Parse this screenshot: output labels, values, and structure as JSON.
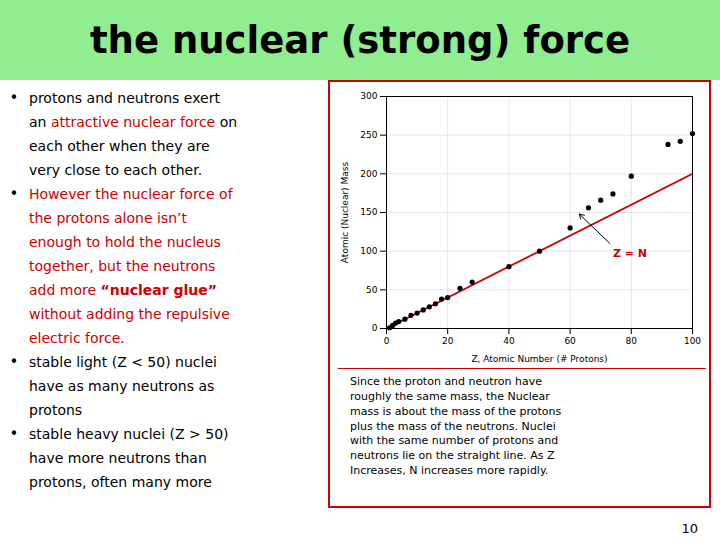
{
  "chart_data": {
    "type": "scatter",
    "title": "the nuclear (strong) force",
    "title_background": "#90EE90",
    "x": [
      1,
      2,
      3,
      4,
      6,
      8,
      10,
      12,
      14,
      16,
      18,
      20,
      24,
      28,
      40,
      50,
      60,
      66,
      70,
      74,
      80,
      92,
      96,
      100
    ],
    "values": [
      1,
      4,
      7,
      9,
      12,
      17,
      20,
      24,
      28,
      32,
      38,
      40,
      52,
      60,
      80,
      100,
      130,
      156,
      166,
      174,
      197,
      238,
      242,
      252
    ],
    "color": "#000000",
    "reference_line": {
      "type": "line",
      "x": [
        0,
        100
      ],
      "values": [
        0,
        200
      ],
      "color": "#CC0000"
    },
    "xlabel": "Z, Atomic Number (# Protons)",
    "ylabel": "Atomic (Nuclear) Mass",
    "xlim": [
      0,
      100
    ],
    "ylim": [
      0,
      300
    ],
    "xticks": [
      0,
      20,
      40,
      60,
      80,
      100
    ],
    "yticks": [
      0,
      50,
      100,
      150,
      200,
      250,
      300
    ],
    "grid": true,
    "annotations": [
      {
        "text": "Z = N",
        "x": 74,
        "y": 92,
        "color": "#CC0000",
        "arrow": {
          "x1": 73,
          "y1": 110,
          "x2": 63,
          "y2": 148
        }
      }
    ],
    "border_color": "#CC0000",
    "caption": "Since the proton and neutron have\nroughly the same mass, the Nuclear\nmass is about the mass of the protons\nplus the mass of the neutrons. Nuclei\nwith the same number of protons and\nneutrons lie on the straight line. As Z\nIncreases, N increases more rapidly.",
    "notes": [
      {
        "bullet": "•",
        "segments": [
          {
            "text": "protons and neutrons exert",
            "color": "#000000"
          }
        ]
      },
      {
        "segments": [
          {
            "text": "an ",
            "color": "#000000"
          },
          {
            "text": "attractive nuclear force",
            "color": "#CC0000"
          },
          {
            "text": " on",
            "color": "#000000"
          }
        ]
      },
      {
        "segments": [
          {
            "text": "each other when they are",
            "color": "#000000"
          }
        ]
      },
      {
        "segments": [
          {
            "text": "very close to each other.",
            "color": "#000000"
          }
        ]
      },
      {
        "bullet": "•",
        "segments": [
          {
            "text": "However the nuclear force of",
            "color": "#CC0000"
          }
        ]
      },
      {
        "segments": [
          {
            "text": "the protons alone isn’t",
            "color": "#CC0000"
          }
        ]
      },
      {
        "segments": [
          {
            "text": "enough to hold the nucleus",
            "color": "#CC0000"
          }
        ]
      },
      {
        "segments": [
          {
            "text": "together, but the neutrons",
            "color": "#CC0000"
          }
        ]
      },
      {
        "segments": [
          {
            "text": "add more ",
            "color": "#CC0000"
          },
          {
            "text": "“nuclear glue”",
            "color": "#CC0000",
            "bold": true
          }
        ]
      },
      {
        "segments": [
          {
            "text": "without adding the repulsive",
            "color": "#CC0000"
          }
        ]
      },
      {
        "segments": [
          {
            "text": "electric force.",
            "color": "#CC0000"
          }
        ]
      },
      {
        "bullet": "•",
        "segments": [
          {
            "text": "stable light (Z < 50) nuclei",
            "color": "#000000"
          }
        ]
      },
      {
        "segments": [
          {
            "text": "have as many neutrons as",
            "color": "#000000"
          }
        ]
      },
      {
        "segments": [
          {
            "text": "protons",
            "color": "#000000"
          }
        ]
      },
      {
        "bullet": "•",
        "segments": [
          {
            "text": "stable heavy nuclei (Z > 50)",
            "color": "#000000"
          }
        ]
      },
      {
        "segments": [
          {
            "text": "have more neutrons than",
            "color": "#000000"
          }
        ]
      },
      {
        "segments": [
          {
            "text": "protons, often many more",
            "color": "#000000"
          }
        ]
      }
    ],
    "footnote": "10"
  }
}
